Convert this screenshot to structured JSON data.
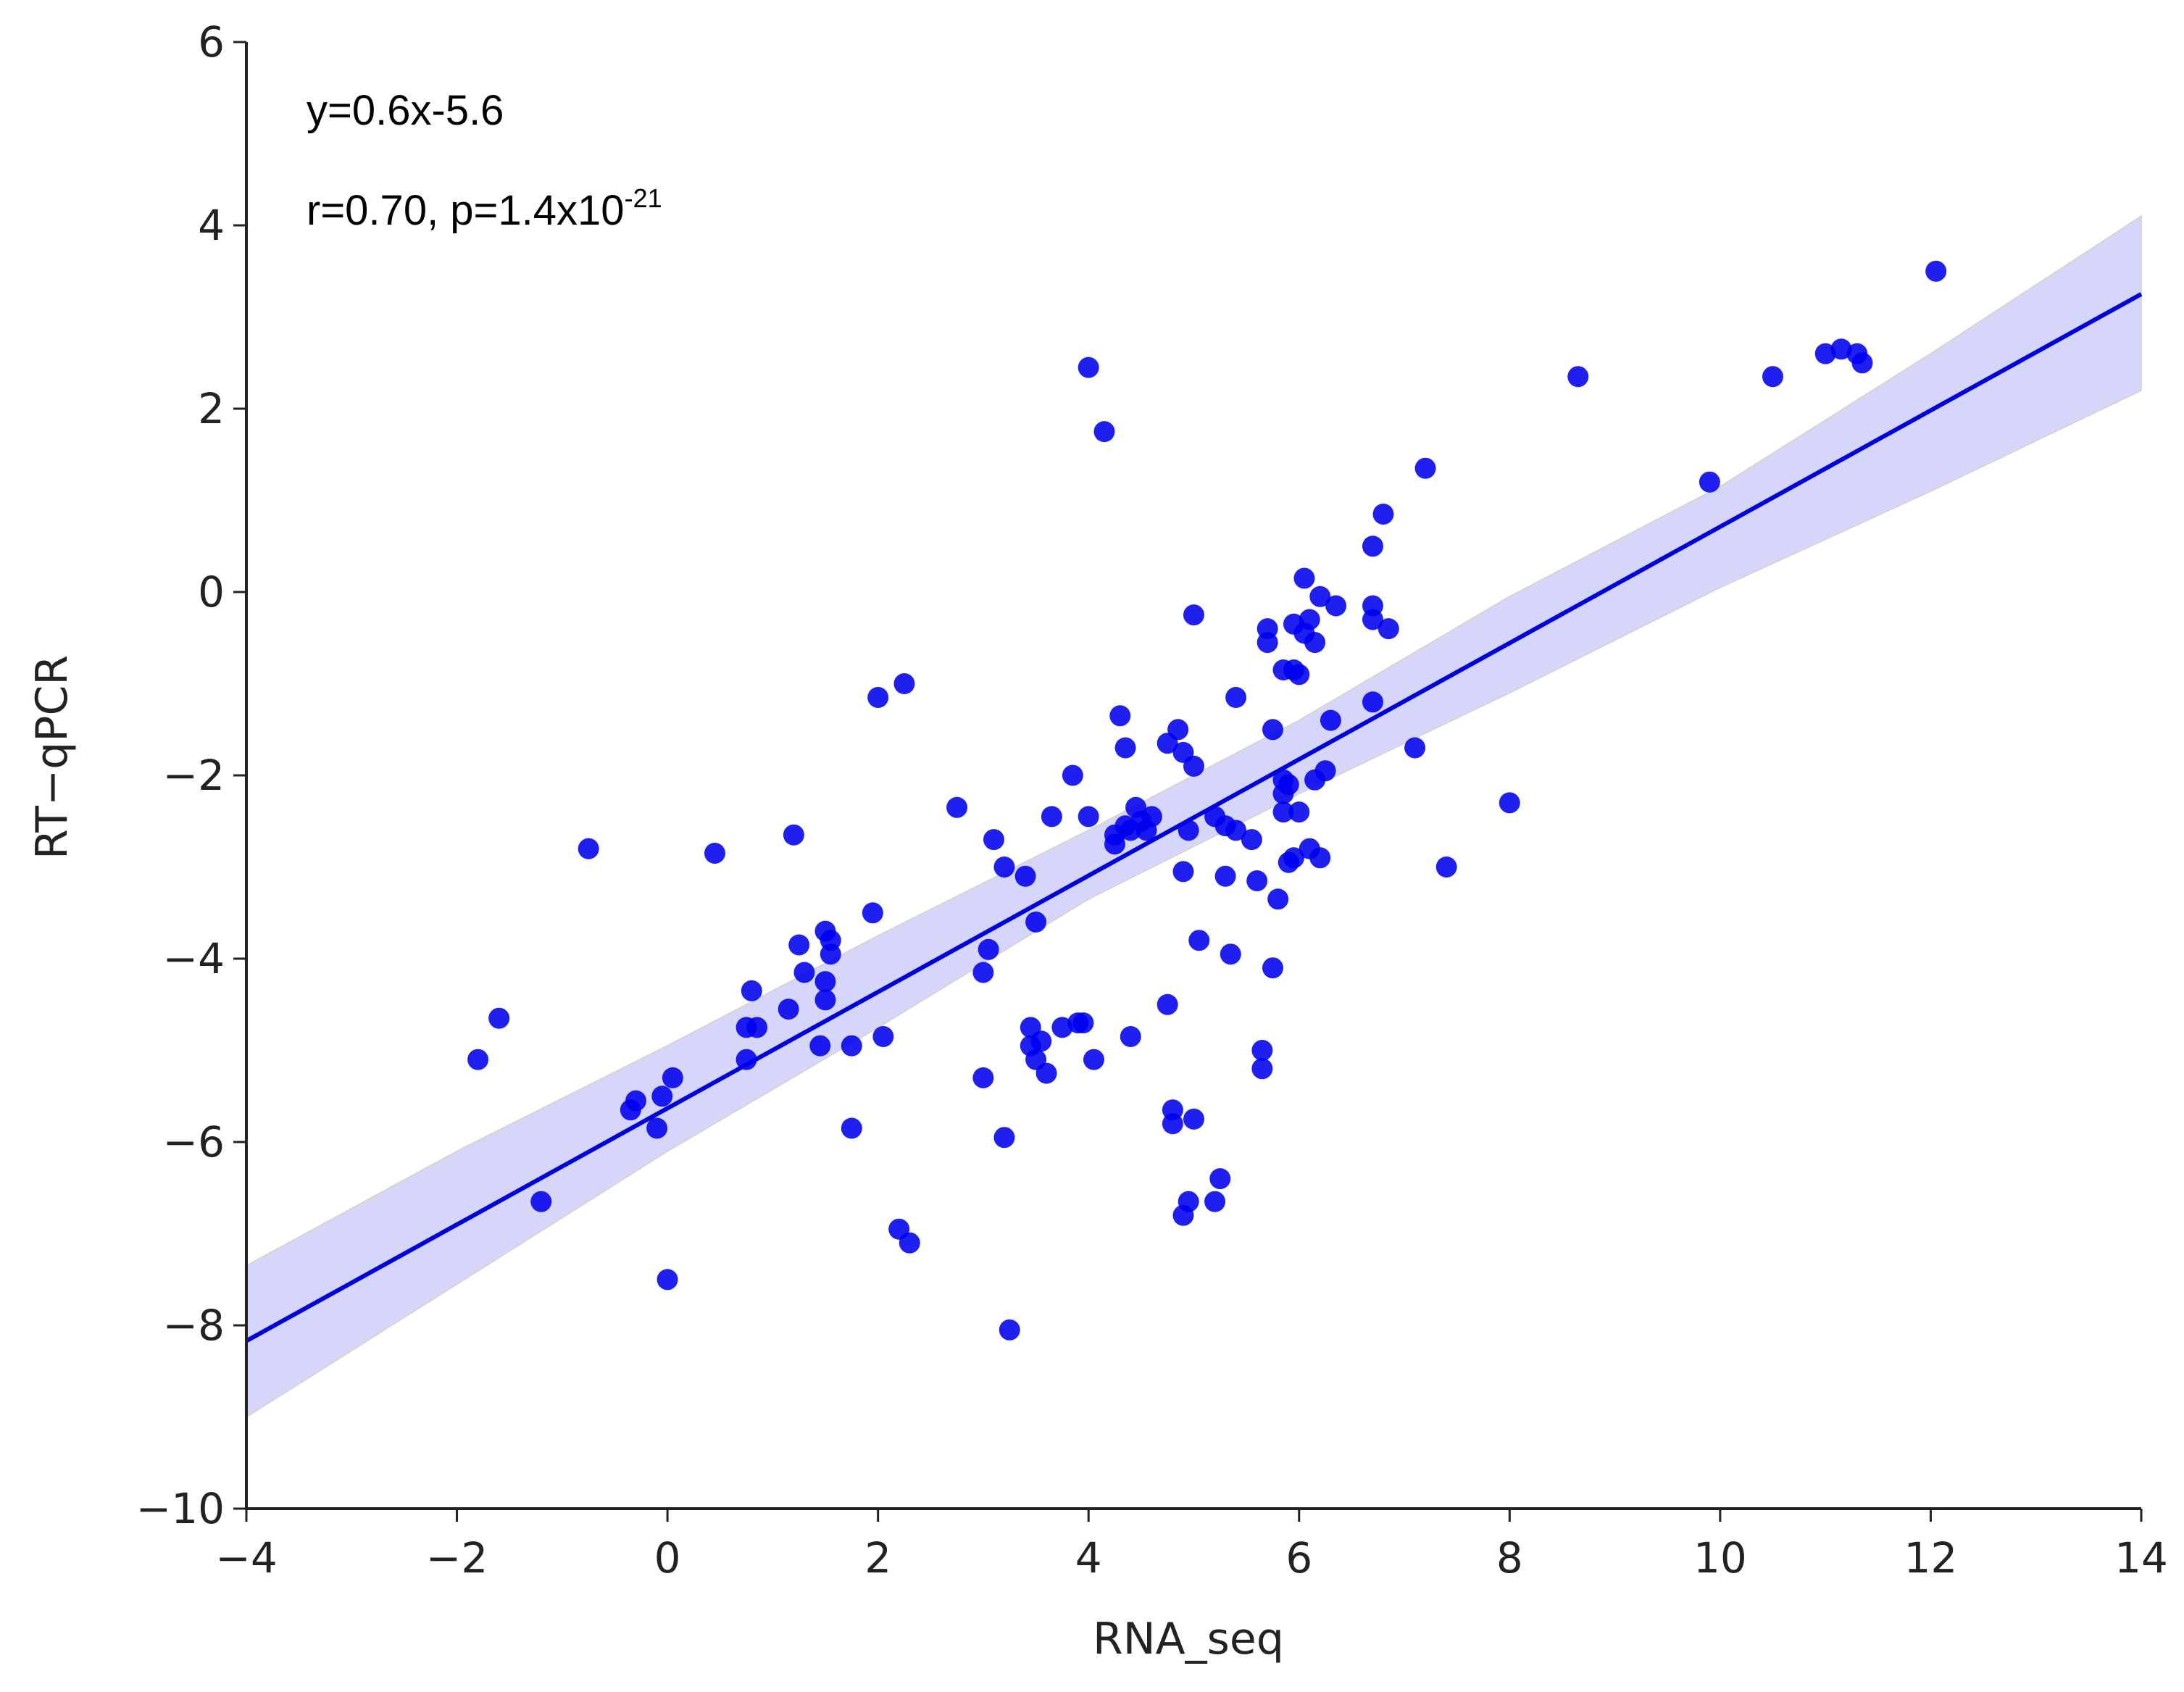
{
  "chart_data": {
    "type": "scatter",
    "xlabel": "RNA_seq",
    "ylabel": "RT−qPCR",
    "xlim": [
      -4,
      14
    ],
    "ylim": [
      -10,
      6
    ],
    "xticks": [
      -4,
      -2,
      0,
      2,
      4,
      6,
      8,
      10,
      12,
      14
    ],
    "xtick_labels": [
      "−4",
      "−2",
      "0",
      "2",
      "4",
      "6",
      "8",
      "10",
      "12",
      "14"
    ],
    "yticks": [
      -10,
      -8,
      -6,
      -4,
      -2,
      0,
      2,
      4,
      6
    ],
    "ytick_labels": [
      "−10",
      "−8",
      "−6",
      "−4",
      "−2",
      "0",
      "2",
      "4",
      "6"
    ],
    "grid": false,
    "legend": "none",
    "colors": {
      "points": "#0000ee",
      "fit_line": "#0000dd",
      "confidence_band": "#c8c8f8",
      "axes": "#222222"
    },
    "annotations": {
      "equation": "y=0.6x-5.6",
      "stats_prefix": "r=0.70, p=1.4x10",
      "stats_exponent": "-21"
    },
    "fit_line": {
      "slope": 0.6,
      "intercept": -5.6,
      "x_range": [
        -4,
        14
      ],
      "y_start": -8.17,
      "y_end": 3.25
    },
    "confidence_band": {
      "x": [
        -4,
        -2,
        0,
        2,
        4,
        6,
        8,
        10,
        12,
        14
      ],
      "lower": [
        -9.0,
        -7.55,
        -6.1,
        -4.75,
        -3.35,
        -2.2,
        -1.1,
        0.05,
        1.1,
        2.2
      ],
      "upper": [
        -7.35,
        -6.1,
        -4.95,
        -3.75,
        -2.6,
        -1.4,
        -0.05,
        1.15,
        2.6,
        4.1
      ]
    },
    "points": [
      {
        "x": -1.8,
        "y": -5.1
      },
      {
        "x": -1.6,
        "y": -4.65
      },
      {
        "x": -1.2,
        "y": -6.65
      },
      {
        "x": -0.75,
        "y": -2.8
      },
      {
        "x": -0.35,
        "y": -5.65
      },
      {
        "x": -0.3,
        "y": -5.55
      },
      {
        "x": -0.1,
        "y": -5.85
      },
      {
        "x": -0.05,
        "y": -5.5
      },
      {
        "x": 0.0,
        "y": -7.5
      },
      {
        "x": 0.05,
        "y": -5.3
      },
      {
        "x": 0.45,
        "y": -2.85
      },
      {
        "x": 0.75,
        "y": -5.1
      },
      {
        "x": 0.75,
        "y": -4.75
      },
      {
        "x": 0.8,
        "y": -4.35
      },
      {
        "x": 0.85,
        "y": -4.75
      },
      {
        "x": 1.15,
        "y": -4.55
      },
      {
        "x": 1.2,
        "y": -2.65
      },
      {
        "x": 1.25,
        "y": -3.85
      },
      {
        "x": 1.3,
        "y": -4.15
      },
      {
        "x": 1.45,
        "y": -4.95
      },
      {
        "x": 1.5,
        "y": -3.7
      },
      {
        "x": 1.5,
        "y": -4.25
      },
      {
        "x": 1.5,
        "y": -4.45
      },
      {
        "x": 1.55,
        "y": -3.8
      },
      {
        "x": 1.55,
        "y": -3.95
      },
      {
        "x": 1.75,
        "y": -4.95
      },
      {
        "x": 1.75,
        "y": -5.85
      },
      {
        "x": 1.95,
        "y": -3.5
      },
      {
        "x": 2.0,
        "y": -1.15
      },
      {
        "x": 2.05,
        "y": -4.85
      },
      {
        "x": 2.2,
        "y": -6.95
      },
      {
        "x": 2.25,
        "y": -1.0
      },
      {
        "x": 2.3,
        "y": -7.1
      },
      {
        "x": 2.75,
        "y": -2.35
      },
      {
        "x": 3.0,
        "y": -5.3
      },
      {
        "x": 3.0,
        "y": -4.15
      },
      {
        "x": 3.05,
        "y": -3.9
      },
      {
        "x": 3.1,
        "y": -2.7
      },
      {
        "x": 3.2,
        "y": -5.95
      },
      {
        "x": 3.2,
        "y": -3.0
      },
      {
        "x": 3.25,
        "y": -8.05
      },
      {
        "x": 3.4,
        "y": -3.1
      },
      {
        "x": 3.45,
        "y": -4.75
      },
      {
        "x": 3.45,
        "y": -4.95
      },
      {
        "x": 3.5,
        "y": -5.1
      },
      {
        "x": 3.5,
        "y": -3.6
      },
      {
        "x": 3.55,
        "y": -4.9
      },
      {
        "x": 3.6,
        "y": -5.25
      },
      {
        "x": 3.65,
        "y": -2.45
      },
      {
        "x": 3.75,
        "y": -4.75
      },
      {
        "x": 3.85,
        "y": -2.0
      },
      {
        "x": 3.9,
        "y": -4.7
      },
      {
        "x": 3.95,
        "y": -4.7
      },
      {
        "x": 4.0,
        "y": 2.45
      },
      {
        "x": 4.0,
        "y": -2.45
      },
      {
        "x": 4.05,
        "y": -5.1
      },
      {
        "x": 4.15,
        "y": 1.75
      },
      {
        "x": 4.25,
        "y": -2.65
      },
      {
        "x": 4.25,
        "y": -2.75
      },
      {
        "x": 4.3,
        "y": -1.35
      },
      {
        "x": 4.35,
        "y": -1.7
      },
      {
        "x": 4.35,
        "y": -2.55
      },
      {
        "x": 4.4,
        "y": -2.6
      },
      {
        "x": 4.4,
        "y": -4.85
      },
      {
        "x": 4.45,
        "y": -2.35
      },
      {
        "x": 4.5,
        "y": -2.5
      },
      {
        "x": 4.55,
        "y": -2.6
      },
      {
        "x": 4.6,
        "y": -2.45
      },
      {
        "x": 4.75,
        "y": -1.65
      },
      {
        "x": 4.75,
        "y": -4.5
      },
      {
        "x": 4.8,
        "y": -5.65
      },
      {
        "x": 4.8,
        "y": -5.8
      },
      {
        "x": 4.85,
        "y": -1.5
      },
      {
        "x": 4.9,
        "y": -3.05
      },
      {
        "x": 4.9,
        "y": -1.75
      },
      {
        "x": 4.9,
        "y": -6.8
      },
      {
        "x": 4.95,
        "y": -2.6
      },
      {
        "x": 4.95,
        "y": -6.65
      },
      {
        "x": 5.0,
        "y": -0.25
      },
      {
        "x": 5.0,
        "y": -5.75
      },
      {
        "x": 5.0,
        "y": -1.9
      },
      {
        "x": 5.05,
        "y": -3.8
      },
      {
        "x": 5.2,
        "y": -2.45
      },
      {
        "x": 5.2,
        "y": -6.65
      },
      {
        "x": 5.25,
        "y": -6.4
      },
      {
        "x": 5.3,
        "y": -2.55
      },
      {
        "x": 5.3,
        "y": -3.1
      },
      {
        "x": 5.35,
        "y": -3.95
      },
      {
        "x": 5.4,
        "y": -1.15
      },
      {
        "x": 5.4,
        "y": -2.6
      },
      {
        "x": 5.55,
        "y": -2.7
      },
      {
        "x": 5.6,
        "y": -3.15
      },
      {
        "x": 5.65,
        "y": -5.0
      },
      {
        "x": 5.65,
        "y": -5.2
      },
      {
        "x": 5.7,
        "y": -0.4
      },
      {
        "x": 5.7,
        "y": -0.55
      },
      {
        "x": 5.75,
        "y": -1.5
      },
      {
        "x": 5.75,
        "y": -4.1
      },
      {
        "x": 5.8,
        "y": -3.35
      },
      {
        "x": 5.85,
        "y": -0.85
      },
      {
        "x": 5.85,
        "y": -2.05
      },
      {
        "x": 5.85,
        "y": -2.2
      },
      {
        "x": 5.85,
        "y": -2.4
      },
      {
        "x": 5.9,
        "y": -2.95
      },
      {
        "x": 5.9,
        "y": -2.1
      },
      {
        "x": 5.95,
        "y": -0.35
      },
      {
        "x": 5.95,
        "y": -0.85
      },
      {
        "x": 5.95,
        "y": -2.9
      },
      {
        "x": 6.0,
        "y": -0.9
      },
      {
        "x": 6.0,
        "y": -2.4
      },
      {
        "x": 6.05,
        "y": 0.15
      },
      {
        "x": 6.05,
        "y": -0.45
      },
      {
        "x": 6.1,
        "y": -0.3
      },
      {
        "x": 6.1,
        "y": -2.8
      },
      {
        "x": 6.15,
        "y": -0.55
      },
      {
        "x": 6.15,
        "y": -2.05
      },
      {
        "x": 6.2,
        "y": -0.05
      },
      {
        "x": 6.2,
        "y": -2.9
      },
      {
        "x": 6.25,
        "y": -1.95
      },
      {
        "x": 6.3,
        "y": -1.4
      },
      {
        "x": 6.35,
        "y": -0.15
      },
      {
        "x": 6.7,
        "y": 0.5
      },
      {
        "x": 6.7,
        "y": -0.15
      },
      {
        "x": 6.7,
        "y": -0.3
      },
      {
        "x": 6.7,
        "y": -1.2
      },
      {
        "x": 6.8,
        "y": 0.85
      },
      {
        "x": 6.85,
        "y": -0.4
      },
      {
        "x": 7.1,
        "y": -1.7
      },
      {
        "x": 7.2,
        "y": 1.35
      },
      {
        "x": 7.4,
        "y": -3.0
      },
      {
        "x": 8.0,
        "y": -2.3
      },
      {
        "x": 8.65,
        "y": 2.35
      },
      {
        "x": 9.9,
        "y": 1.2
      },
      {
        "x": 10.5,
        "y": 2.35
      },
      {
        "x": 11.0,
        "y": 2.6
      },
      {
        "x": 11.15,
        "y": 2.65
      },
      {
        "x": 11.3,
        "y": 2.6
      },
      {
        "x": 11.35,
        "y": 2.5
      },
      {
        "x": 12.05,
        "y": 3.5
      }
    ]
  }
}
